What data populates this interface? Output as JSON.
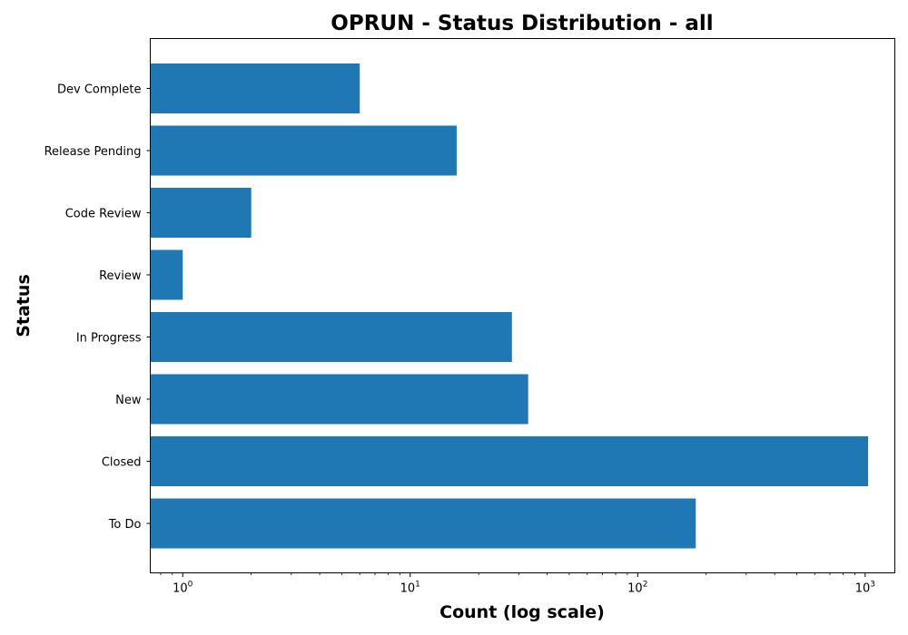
{
  "chart_data": {
    "type": "bar",
    "orientation": "horizontal",
    "title": "OPRUN - Status Distribution - all",
    "xlabel": "Count (log scale)",
    "ylabel": "Status",
    "x_scale": "log",
    "xlim": [
      0.72,
      1350
    ],
    "x_ticks": [
      {
        "value": 1,
        "base": "10",
        "exp": "0"
      },
      {
        "value": 10,
        "base": "10",
        "exp": "1"
      },
      {
        "value": 100,
        "base": "10",
        "exp": "2"
      },
      {
        "value": 1000,
        "base": "10",
        "exp": "3"
      }
    ],
    "categories": [
      "To Do",
      "Closed",
      "New",
      "In Progress",
      "Review",
      "Code Review",
      "Release Pending",
      "Dev Complete"
    ],
    "values": [
      180,
      1030,
      33,
      28,
      1,
      2,
      16,
      6
    ],
    "bar_color": "#1f77b4",
    "grid": false,
    "legend": "none"
  }
}
